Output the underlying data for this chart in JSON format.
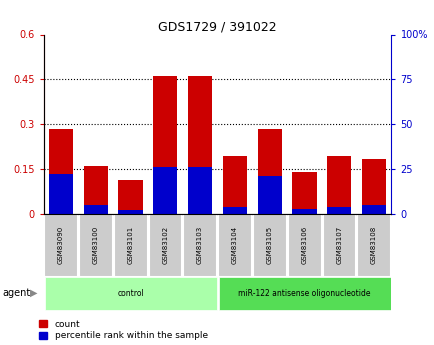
{
  "title": "GDS1729 / 391022",
  "samples": [
    "GSM83090",
    "GSM83100",
    "GSM83101",
    "GSM83102",
    "GSM83103",
    "GSM83104",
    "GSM83105",
    "GSM83106",
    "GSM83107",
    "GSM83108"
  ],
  "count_values": [
    0.285,
    0.16,
    0.115,
    0.46,
    0.46,
    0.195,
    0.285,
    0.14,
    0.195,
    0.185
  ],
  "percentile_values": [
    22,
    5,
    2,
    26,
    26,
    4,
    21,
    3,
    4,
    5
  ],
  "groups": [
    {
      "label": "control",
      "start": 0,
      "end": 5,
      "color": "#aaffaa"
    },
    {
      "label": "miR-122 antisense oligonucleotide",
      "start": 5,
      "end": 10,
      "color": "#55dd55"
    }
  ],
  "bar_color": "#cc0000",
  "blue_color": "#0000cc",
  "ylim_left": [
    0,
    0.6
  ],
  "ylim_right": [
    0,
    100
  ],
  "yticks_left": [
    0,
    0.15,
    0.3,
    0.45,
    0.6
  ],
  "yticks_right": [
    0,
    25,
    50,
    75,
    100
  ],
  "grid_values": [
    0.15,
    0.3,
    0.45
  ],
  "bar_width": 0.7,
  "background_color": "#ffffff",
  "tick_label_color_left": "#cc0000",
  "tick_label_color_right": "#0000cc",
  "legend_count": "count",
  "legend_percentile": "percentile rank within the sample",
  "agent_label": "agent",
  "gsm_label_bg": "#cccccc",
  "control_color": "#aaffaa",
  "mirna_color": "#44cc44"
}
